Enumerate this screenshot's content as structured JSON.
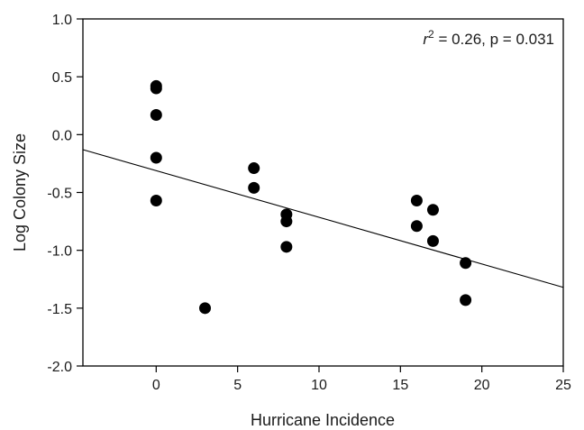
{
  "chart_data": {
    "type": "scatter",
    "title": "",
    "xlabel": "Hurricane Incidence",
    "ylabel": "Log Colony Size",
    "xlim": [
      -4.5,
      25
    ],
    "ylim": [
      -2.0,
      1.0
    ],
    "xticks": [
      0,
      5,
      10,
      15,
      20,
      25
    ],
    "yticks": [
      1.0,
      0.5,
      0.0,
      -0.5,
      -1.0,
      -1.5,
      -2.0
    ],
    "xtick_labels": [
      "0",
      "5",
      "10",
      "15",
      "20",
      "25"
    ],
    "ytick_labels": [
      "1.0",
      "0.5",
      "0.0",
      "-0.5",
      "-1.0",
      "-1.5",
      "-2.0"
    ],
    "grid": false,
    "points": [
      {
        "x": 0,
        "y": 0.42
      },
      {
        "x": 0,
        "y": 0.4
      },
      {
        "x": 0,
        "y": 0.17
      },
      {
        "x": 0,
        "y": -0.2
      },
      {
        "x": 0,
        "y": -0.57
      },
      {
        "x": 3,
        "y": -1.5
      },
      {
        "x": 6,
        "y": -0.29
      },
      {
        "x": 6,
        "y": -0.46
      },
      {
        "x": 8,
        "y": -0.69
      },
      {
        "x": 8,
        "y": -0.75
      },
      {
        "x": 8,
        "y": -0.97
      },
      {
        "x": 16,
        "y": -0.57
      },
      {
        "x": 16,
        "y": -0.79
      },
      {
        "x": 17,
        "y": -0.65
      },
      {
        "x": 17,
        "y": -0.92
      },
      {
        "x": 19,
        "y": -1.11
      },
      {
        "x": 19,
        "y": -1.43
      }
    ],
    "fit_line": {
      "x": [
        -4.5,
        25
      ],
      "y": [
        -0.13,
        -1.32
      ]
    },
    "annotation": {
      "r_symbol": "r",
      "exponent": "2",
      "rest": " = 0.26, p = 0.031",
      "position": "top-right"
    }
  }
}
